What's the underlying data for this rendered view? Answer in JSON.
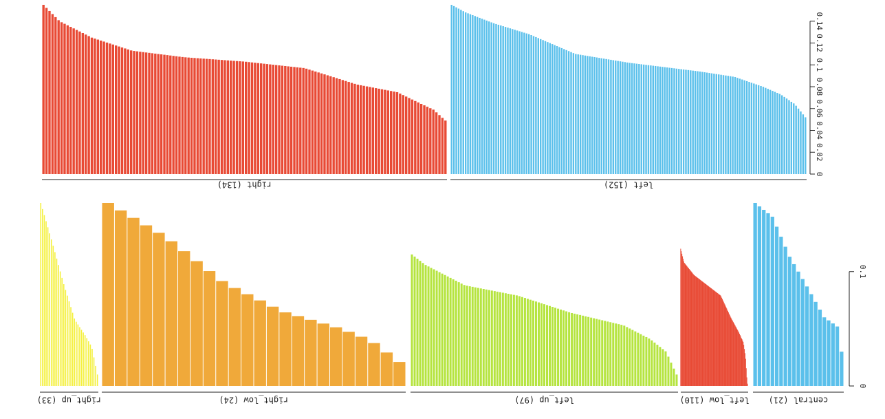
{
  "chart_data": [
    {
      "type": "bar",
      "orientation": "flipped",
      "ylim": [
        0,
        0.155
      ],
      "yticks": [
        0,
        0.02,
        0.04,
        0.06,
        0.08,
        0.1,
        0.12,
        0.14
      ],
      "ytick_labels": [
        "0",
        "0.02",
        "0.04",
        "0.06",
        "0.08",
        "0.1",
        "0.12",
        "0.14"
      ],
      "groups": [
        {
          "name": "left (152)",
          "color": "#5bc0eb",
          "count": 152,
          "max": 0.155,
          "min": 0.052,
          "profile": [
            [
              0,
              0.155
            ],
            [
              0.04,
              0.148
            ],
            [
              0.12,
              0.138
            ],
            [
              0.22,
              0.128
            ],
            [
              0.35,
              0.11
            ],
            [
              0.5,
              0.102
            ],
            [
              0.7,
              0.094
            ],
            [
              0.8,
              0.089
            ],
            [
              0.88,
              0.08
            ],
            [
              0.93,
              0.073
            ],
            [
              0.97,
              0.064
            ],
            [
              1,
              0.052
            ]
          ]
        },
        {
          "name": "right (134)",
          "color": "#e84a35",
          "count": 134,
          "max": 0.155,
          "min": 0.049,
          "profile": [
            [
              0,
              0.155
            ],
            [
              0.04,
              0.14
            ],
            [
              0.12,
              0.125
            ],
            [
              0.22,
              0.113
            ],
            [
              0.35,
              0.107
            ],
            [
              0.5,
              0.103
            ],
            [
              0.65,
              0.097
            ],
            [
              0.78,
              0.082
            ],
            [
              0.88,
              0.075
            ],
            [
              0.93,
              0.066
            ],
            [
              0.97,
              0.059
            ],
            [
              1,
              0.049
            ]
          ]
        }
      ]
    },
    {
      "type": "bar",
      "orientation": "flipped",
      "ylim": [
        0,
        0.16
      ],
      "yticks": [
        0,
        0.1
      ],
      "ytick_labels": [
        "0",
        "0.1"
      ],
      "groups": [
        {
          "name": "central (21)",
          "color": "#5bc0eb",
          "count": 21,
          "max": 0.16,
          "min": 0.03,
          "profile": [
            [
              0,
              0.16
            ],
            [
              0.2,
              0.148
            ],
            [
              0.4,
              0.113
            ],
            [
              0.6,
              0.087
            ],
            [
              0.8,
              0.06
            ],
            [
              0.95,
              0.052
            ],
            [
              1,
              0.03
            ]
          ]
        },
        {
          "name": "left_low (110)",
          "color": "#e84a35",
          "count": 110,
          "max": 0.12,
          "min": 0.002,
          "profile": [
            [
              0,
              0.12
            ],
            [
              0.05,
              0.108
            ],
            [
              0.2,
              0.097
            ],
            [
              0.4,
              0.088
            ],
            [
              0.6,
              0.079
            ],
            [
              0.75,
              0.06
            ],
            [
              0.87,
              0.047
            ],
            [
              0.94,
              0.038
            ],
            [
              0.97,
              0.026
            ],
            [
              0.99,
              0.008
            ],
            [
              1,
              0.002
            ]
          ]
        },
        {
          "name": "left_up (97)",
          "color": "#b5e43f",
          "count": 97,
          "max": 0.115,
          "min": 0.01,
          "profile": [
            [
              0,
              0.115
            ],
            [
              0.05,
              0.106
            ],
            [
              0.2,
              0.088
            ],
            [
              0.4,
              0.079
            ],
            [
              0.6,
              0.064
            ],
            [
              0.8,
              0.053
            ],
            [
              0.9,
              0.041
            ],
            [
              0.96,
              0.03
            ],
            [
              1,
              0.01
            ]
          ]
        },
        {
          "name": "right_low (24)",
          "color": "#f0a93a",
          "count": 24,
          "max": 0.16,
          "min": 0.021,
          "profile": [
            [
              0,
              0.16
            ],
            [
              0.2,
              0.13
            ],
            [
              0.4,
              0.09
            ],
            [
              0.6,
              0.065
            ],
            [
              0.8,
              0.05
            ],
            [
              0.9,
              0.04
            ],
            [
              1,
              0.021
            ]
          ]
        },
        {
          "name": "right_up (33)",
          "color": "#f4f03c",
          "count": 33,
          "max": 0.16,
          "min": 0.01,
          "profile": [
            [
              0,
              0.16
            ],
            [
              0.2,
              0.126
            ],
            [
              0.4,
              0.09
            ],
            [
              0.6,
              0.058
            ],
            [
              0.8,
              0.043
            ],
            [
              0.9,
              0.034
            ],
            [
              1,
              0.01
            ]
          ]
        }
      ]
    }
  ]
}
